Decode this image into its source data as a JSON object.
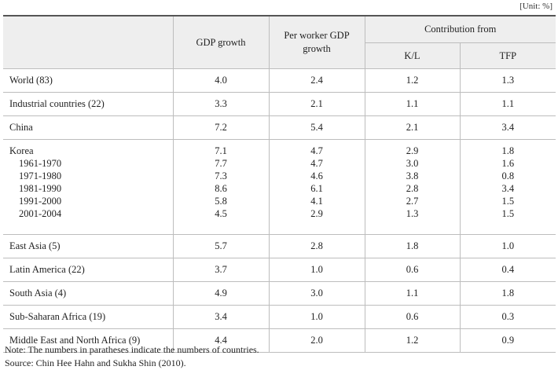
{
  "unit": "[Unit: %]",
  "columns": {
    "gdp_growth": "GDP growth",
    "per_worker_gdp_growth": "Per worker GDP growth",
    "contribution_from": "Contribution from",
    "kl": "K/L",
    "tfp": "TFP"
  },
  "rows": [
    {
      "label": "World (83)",
      "gdp": "4.0",
      "per_worker": "2.4",
      "kl": "1.2",
      "tfp": "1.3"
    },
    {
      "label": "Industrial countries (22)",
      "gdp": "3.3",
      "per_worker": "2.1",
      "kl": "1.1",
      "tfp": "1.1"
    },
    {
      "label": "China",
      "gdp": "7.2",
      "per_worker": "5.4",
      "kl": "2.1",
      "tfp": "3.4"
    }
  ],
  "korea": {
    "label": "Korea",
    "gdp": "7.1",
    "per_worker": "4.7",
    "kl": "2.9",
    "tfp": "1.8",
    "periods": [
      {
        "label": "1961-1970",
        "gdp": "7.7",
        "per_worker": "4.7",
        "kl": "3.0",
        "tfp": "1.6"
      },
      {
        "label": "1971-1980",
        "gdp": "7.3",
        "per_worker": "4.6",
        "kl": "3.8",
        "tfp": "0.8"
      },
      {
        "label": "1981-1990",
        "gdp": "8.6",
        "per_worker": "6.1",
        "kl": "2.8",
        "tfp": "3.4"
      },
      {
        "label": "1991-2000",
        "gdp": "5.8",
        "per_worker": "4.1",
        "kl": "2.7",
        "tfp": "1.5"
      },
      {
        "label": "2001-2004",
        "gdp": "4.5",
        "per_worker": "2.9",
        "kl": "1.3",
        "tfp": "1.5"
      }
    ]
  },
  "rows_after": [
    {
      "label": "East Asia (5)",
      "gdp": "5.7",
      "per_worker": "2.8",
      "kl": "1.8",
      "tfp": "1.0"
    },
    {
      "label": "Latin America (22)",
      "gdp": "3.7",
      "per_worker": "1.0",
      "kl": "0.6",
      "tfp": "0.4"
    },
    {
      "label": "South Asia (4)",
      "gdp": "4.9",
      "per_worker": "3.0",
      "kl": "1.1",
      "tfp": "1.8"
    },
    {
      "label": "Sub-Saharan Africa (19)",
      "gdp": "3.4",
      "per_worker": "1.0",
      "kl": "0.6",
      "tfp": "0.3"
    },
    {
      "label": "Middle East and North Africa (9)",
      "gdp": "4.4",
      "per_worker": "2.0",
      "kl": "1.2",
      "tfp": "0.9"
    }
  ],
  "note": "Note: The numbers in paratheses indicate the numbers of countries.",
  "source": "Source: Chin Hee Hahn and Sukha Shin (2010)."
}
